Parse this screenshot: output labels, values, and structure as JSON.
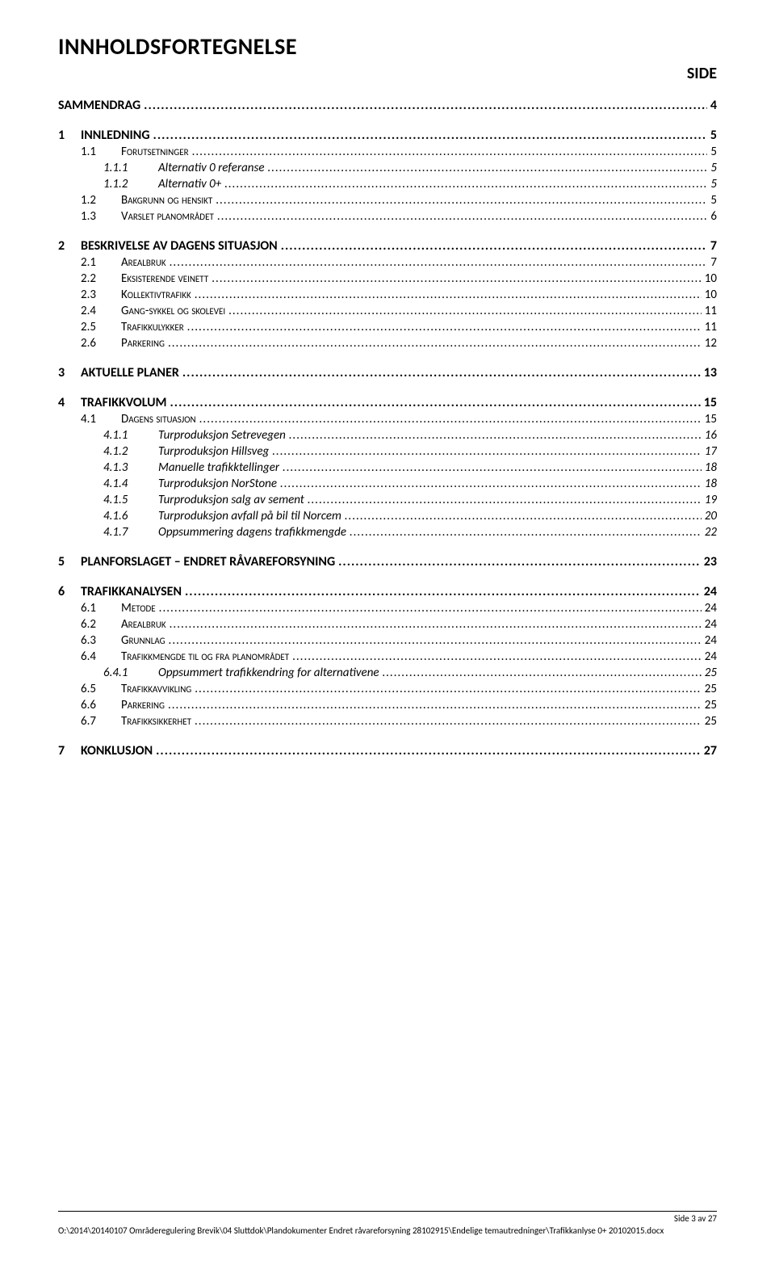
{
  "title": "INNHOLDSFORTEGNELSE",
  "side_label": "SIDE",
  "leader_char": ".",
  "toc": [
    {
      "level": 0,
      "num": "",
      "label": "SAMMENDRAG",
      "page": "4"
    },
    {
      "level": 0,
      "num": "1",
      "label": "INNLEDNING",
      "page": "5"
    },
    {
      "level": 1,
      "num": "1.1",
      "label": "Forutsetninger",
      "page": "5"
    },
    {
      "level": 2,
      "num": "1.1.1",
      "label": "Alternativ 0 referanse",
      "page": "5"
    },
    {
      "level": 2,
      "num": "1.1.2",
      "label": "Alternativ 0+",
      "page": "5"
    },
    {
      "level": 1,
      "num": "1.2",
      "label": "Bakgrunn og hensikt",
      "page": "5"
    },
    {
      "level": 1,
      "num": "1.3",
      "label": "Varslet planområdet",
      "page": "6"
    },
    {
      "level": 0,
      "num": "2",
      "label": "BESKRIVELSE AV DAGENS SITUASJON",
      "page": "7"
    },
    {
      "level": 1,
      "num": "2.1",
      "label": "Arealbruk",
      "page": "7"
    },
    {
      "level": 1,
      "num": "2.2",
      "label": "Eksisterende veinett",
      "page": "10"
    },
    {
      "level": 1,
      "num": "2.3",
      "label": "Kollektivtrafikk",
      "page": "10"
    },
    {
      "level": 1,
      "num": "2.4",
      "label": "Gang-sykkel og skolevei",
      "page": "11"
    },
    {
      "level": 1,
      "num": "2.5",
      "label": "Trafikkulykker",
      "page": "11"
    },
    {
      "level": 1,
      "num": "2.6",
      "label": "Parkering",
      "page": "12"
    },
    {
      "level": 0,
      "num": "3",
      "label": "AKTUELLE PLANER",
      "page": "13"
    },
    {
      "level": 0,
      "num": "4",
      "label": "TRAFIKKVOLUM",
      "page": "15"
    },
    {
      "level": 1,
      "num": "4.1",
      "label": "Dagens situasjon",
      "page": "15"
    },
    {
      "level": 2,
      "num": "4.1.1",
      "label": "Turproduksjon Setrevegen",
      "page": "16"
    },
    {
      "level": 2,
      "num": "4.1.2",
      "label": "Turproduksjon Hillsveg",
      "page": "17"
    },
    {
      "level": 2,
      "num": "4.1.3",
      "label": "Manuelle trafikktellinger",
      "page": "18"
    },
    {
      "level": 2,
      "num": "4.1.4",
      "label": "Turproduksjon NorStone",
      "page": "18"
    },
    {
      "level": 2,
      "num": "4.1.5",
      "label": "Turproduksjon salg av sement",
      "page": "19"
    },
    {
      "level": 2,
      "num": "4.1.6",
      "label": "Turproduksjon avfall på bil til Norcem",
      "page": "20"
    },
    {
      "level": 2,
      "num": "4.1.7",
      "label": "Oppsummering dagens trafikkmengde",
      "page": "22"
    },
    {
      "level": 0,
      "num": "5",
      "label": "PLANFORSLAGET – ENDRET RÅVAREFORSYNING",
      "page": "23"
    },
    {
      "level": 0,
      "num": "6",
      "label": "TRAFIKKANALYSEN",
      "page": "24"
    },
    {
      "level": 1,
      "num": "6.1",
      "label": "Metode",
      "page": "24"
    },
    {
      "level": 1,
      "num": "6.2",
      "label": "Arealbruk",
      "page": "24"
    },
    {
      "level": 1,
      "num": "6.3",
      "label": "Grunnlag",
      "page": "24"
    },
    {
      "level": 1,
      "num": "6.4",
      "label": "Trafikkmengde til og fra planområdet",
      "page": "24"
    },
    {
      "level": 2,
      "num": "6.4.1",
      "label": "Oppsummert trafikkendring for alternativene",
      "page": "25"
    },
    {
      "level": 1,
      "num": "6.5",
      "label": "Trafikkavvikling",
      "page": "25"
    },
    {
      "level": 1,
      "num": "6.6",
      "label": "Parkering",
      "page": "25"
    },
    {
      "level": 1,
      "num": "6.7",
      "label": "Trafikksikkerhet",
      "page": "25"
    },
    {
      "level": 0,
      "num": "7",
      "label": "KONKLUSJON",
      "page": "27"
    }
  ],
  "footer": {
    "page_label": "Side 3 av 27",
    "path": "O:\\2014\\20140107 Områderegulering Brevik\\04 Sluttdok\\Plandokumenter Endret råvareforsyning 28102915\\Endelige temautredninger\\Trafikkanlyse 0+ 20102015.docx"
  }
}
